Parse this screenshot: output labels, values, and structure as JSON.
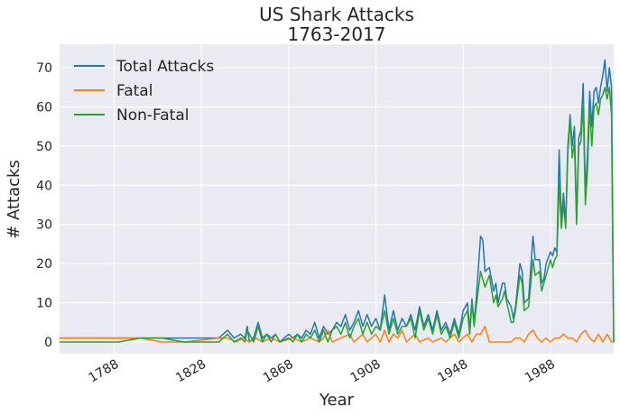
{
  "chart_data": {
    "type": "line",
    "title": "US Shark Attacks",
    "subtitle": "1763-2017",
    "xlabel": "Year",
    "ylabel": "# Attacks",
    "xlim": [
      1763,
      2017
    ],
    "ylim": [
      -3,
      76
    ],
    "x_ticks": [
      1788,
      1828,
      1868,
      1908,
      1948,
      1988
    ],
    "y_ticks": [
      0,
      10,
      20,
      30,
      40,
      50,
      60,
      70
    ],
    "grid": true,
    "legend": "top-left",
    "background": "#eaeaf2",
    "series": [
      {
        "name": "Total Attacks",
        "color": "#1f77b4",
        "points": [
          [
            1763,
            1
          ],
          [
            1790,
            1
          ],
          [
            1800,
            1
          ],
          [
            1810,
            1
          ],
          [
            1820,
            1
          ],
          [
            1830,
            1
          ],
          [
            1836,
            1
          ],
          [
            1840,
            3
          ],
          [
            1843,
            1
          ],
          [
            1846,
            2
          ],
          [
            1848,
            1
          ],
          [
            1849,
            4
          ],
          [
            1850,
            0
          ],
          [
            1852,
            1
          ],
          [
            1854,
            5
          ],
          [
            1856,
            1
          ],
          [
            1858,
            2
          ],
          [
            1860,
            1
          ],
          [
            1862,
            2
          ],
          [
            1864,
            0
          ],
          [
            1866,
            1
          ],
          [
            1868,
            2
          ],
          [
            1870,
            1
          ],
          [
            1872,
            2
          ],
          [
            1874,
            1
          ],
          [
            1876,
            3
          ],
          [
            1878,
            2
          ],
          [
            1880,
            5
          ],
          [
            1882,
            1
          ],
          [
            1884,
            4
          ],
          [
            1886,
            2
          ],
          [
            1888,
            3
          ],
          [
            1890,
            5
          ],
          [
            1892,
            4
          ],
          [
            1894,
            7
          ],
          [
            1896,
            3
          ],
          [
            1898,
            5
          ],
          [
            1900,
            8
          ],
          [
            1902,
            4
          ],
          [
            1904,
            7
          ],
          [
            1906,
            4
          ],
          [
            1908,
            6
          ],
          [
            1910,
            3
          ],
          [
            1912,
            12
          ],
          [
            1914,
            3
          ],
          [
            1916,
            8
          ],
          [
            1918,
            3
          ],
          [
            1920,
            6
          ],
          [
            1922,
            4
          ],
          [
            1924,
            7
          ],
          [
            1926,
            3
          ],
          [
            1928,
            9
          ],
          [
            1930,
            4
          ],
          [
            1932,
            7
          ],
          [
            1934,
            3
          ],
          [
            1936,
            8
          ],
          [
            1938,
            3
          ],
          [
            1940,
            5
          ],
          [
            1942,
            2
          ],
          [
            1944,
            6
          ],
          [
            1946,
            2
          ],
          [
            1948,
            8
          ],
          [
            1950,
            10
          ],
          [
            1951,
            3
          ],
          [
            1952,
            11
          ],
          [
            1953,
            5
          ],
          [
            1954,
            11
          ],
          [
            1956,
            27
          ],
          [
            1957,
            26
          ],
          [
            1958,
            18
          ],
          [
            1960,
            19
          ],
          [
            1962,
            13
          ],
          [
            1963,
            15
          ],
          [
            1964,
            10
          ],
          [
            1966,
            15
          ],
          [
            1967,
            15
          ],
          [
            1968,
            11
          ],
          [
            1970,
            9
          ],
          [
            1971,
            6
          ],
          [
            1972,
            9
          ],
          [
            1974,
            20
          ],
          [
            1975,
            18
          ],
          [
            1976,
            10
          ],
          [
            1978,
            11
          ],
          [
            1980,
            27
          ],
          [
            1981,
            21
          ],
          [
            1983,
            21
          ],
          [
            1984,
            15
          ],
          [
            1985,
            16
          ],
          [
            1986,
            20
          ],
          [
            1988,
            23
          ],
          [
            1989,
            22
          ],
          [
            1990,
            24
          ],
          [
            1991,
            23
          ],
          [
            1992,
            49
          ],
          [
            1993,
            31
          ],
          [
            1994,
            38
          ],
          [
            1995,
            30
          ],
          [
            1996,
            50
          ],
          [
            1997,
            58
          ],
          [
            1998,
            50
          ],
          [
            1999,
            55
          ],
          [
            2000,
            31
          ],
          [
            2001,
            52
          ],
          [
            2002,
            54
          ],
          [
            2003,
            66
          ],
          [
            2004,
            38
          ],
          [
            2005,
            48
          ],
          [
            2006,
            64
          ],
          [
            2007,
            55
          ],
          [
            2008,
            64
          ],
          [
            2009,
            65
          ],
          [
            2010,
            61
          ],
          [
            2011,
            65
          ],
          [
            2012,
            68
          ],
          [
            2013,
            72
          ],
          [
            2014,
            64
          ],
          [
            2015,
            70
          ],
          [
            2016,
            65
          ],
          [
            2017,
            0
          ]
        ]
      },
      {
        "name": "Fatal",
        "color": "#ff7f0e",
        "points": [
          [
            1763,
            1
          ],
          [
            1800,
            1
          ],
          [
            1810,
            0
          ],
          [
            1820,
            0
          ],
          [
            1836,
            1
          ],
          [
            1840,
            1
          ],
          [
            1844,
            0
          ],
          [
            1847,
            1
          ],
          [
            1850,
            0
          ],
          [
            1853,
            1
          ],
          [
            1856,
            0
          ],
          [
            1860,
            1
          ],
          [
            1864,
            0
          ],
          [
            1870,
            1
          ],
          [
            1874,
            0
          ],
          [
            1878,
            1
          ],
          [
            1882,
            0
          ],
          [
            1884,
            1
          ],
          [
            1886,
            3
          ],
          [
            1888,
            0
          ],
          [
            1892,
            1
          ],
          [
            1896,
            2
          ],
          [
            1898,
            0
          ],
          [
            1902,
            2
          ],
          [
            1904,
            0
          ],
          [
            1908,
            2
          ],
          [
            1910,
            0
          ],
          [
            1912,
            3
          ],
          [
            1914,
            0
          ],
          [
            1916,
            2
          ],
          [
            1918,
            1
          ],
          [
            1920,
            3
          ],
          [
            1922,
            0
          ],
          [
            1926,
            2
          ],
          [
            1928,
            0
          ],
          [
            1932,
            1
          ],
          [
            1934,
            0
          ],
          [
            1938,
            1
          ],
          [
            1940,
            0
          ],
          [
            1944,
            2
          ],
          [
            1946,
            0
          ],
          [
            1948,
            1
          ],
          [
            1950,
            2
          ],
          [
            1952,
            0
          ],
          [
            1954,
            2
          ],
          [
            1956,
            2
          ],
          [
            1958,
            4
          ],
          [
            1960,
            0
          ],
          [
            1964,
            0
          ],
          [
            1966,
            0
          ],
          [
            1968,
            0
          ],
          [
            1970,
            0
          ],
          [
            1972,
            1
          ],
          [
            1974,
            1
          ],
          [
            1976,
            0
          ],
          [
            1978,
            2
          ],
          [
            1980,
            3
          ],
          [
            1982,
            1
          ],
          [
            1984,
            0
          ],
          [
            1986,
            1
          ],
          [
            1988,
            0
          ],
          [
            1990,
            1
          ],
          [
            1992,
            1
          ],
          [
            1994,
            2
          ],
          [
            1996,
            1
          ],
          [
            1998,
            1
          ],
          [
            2000,
            0
          ],
          [
            2002,
            2
          ],
          [
            2004,
            3
          ],
          [
            2006,
            1
          ],
          [
            2008,
            0
          ],
          [
            2010,
            2
          ],
          [
            2012,
            0
          ],
          [
            2014,
            2
          ],
          [
            2016,
            0
          ],
          [
            2017,
            0
          ]
        ]
      },
      {
        "name": "Non-Fatal",
        "color": "#2ca02c",
        "points": [
          [
            1763,
            0
          ],
          [
            1790,
            0
          ],
          [
            1800,
            1
          ],
          [
            1810,
            1
          ],
          [
            1820,
            0
          ],
          [
            1830,
            0
          ],
          [
            1836,
            0
          ],
          [
            1840,
            2
          ],
          [
            1843,
            0
          ],
          [
            1846,
            1
          ],
          [
            1848,
            0
          ],
          [
            1849,
            3
          ],
          [
            1852,
            0
          ],
          [
            1854,
            4
          ],
          [
            1856,
            0
          ],
          [
            1858,
            2
          ],
          [
            1860,
            0
          ],
          [
            1862,
            2
          ],
          [
            1864,
            0
          ],
          [
            1868,
            1
          ],
          [
            1870,
            0
          ],
          [
            1872,
            2
          ],
          [
            1874,
            0
          ],
          [
            1876,
            2
          ],
          [
            1878,
            1
          ],
          [
            1880,
            3
          ],
          [
            1882,
            0
          ],
          [
            1884,
            3
          ],
          [
            1886,
            0
          ],
          [
            1888,
            3
          ],
          [
            1890,
            4
          ],
          [
            1892,
            2
          ],
          [
            1894,
            5
          ],
          [
            1896,
            1
          ],
          [
            1898,
            4
          ],
          [
            1900,
            6
          ],
          [
            1902,
            2
          ],
          [
            1904,
            5
          ],
          [
            1906,
            2
          ],
          [
            1908,
            4
          ],
          [
            1910,
            3
          ],
          [
            1912,
            8
          ],
          [
            1914,
            2
          ],
          [
            1916,
            6
          ],
          [
            1918,
            2
          ],
          [
            1920,
            4
          ],
          [
            1922,
            4
          ],
          [
            1924,
            6
          ],
          [
            1926,
            1
          ],
          [
            1928,
            8
          ],
          [
            1930,
            3
          ],
          [
            1932,
            6
          ],
          [
            1934,
            2
          ],
          [
            1936,
            7
          ],
          [
            1938,
            2
          ],
          [
            1940,
            4
          ],
          [
            1942,
            1
          ],
          [
            1944,
            5
          ],
          [
            1946,
            1
          ],
          [
            1948,
            6
          ],
          [
            1950,
            8
          ],
          [
            1951,
            2
          ],
          [
            1952,
            10
          ],
          [
            1953,
            4
          ],
          [
            1954,
            9
          ],
          [
            1956,
            18
          ],
          [
            1957,
            16
          ],
          [
            1958,
            14
          ],
          [
            1960,
            17
          ],
          [
            1962,
            10
          ],
          [
            1963,
            12
          ],
          [
            1964,
            9
          ],
          [
            1966,
            11
          ],
          [
            1967,
            13
          ],
          [
            1968,
            10
          ],
          [
            1970,
            5
          ],
          [
            1971,
            5
          ],
          [
            1972,
            8
          ],
          [
            1974,
            17
          ],
          [
            1975,
            15
          ],
          [
            1976,
            8
          ],
          [
            1978,
            9
          ],
          [
            1980,
            21
          ],
          [
            1981,
            17
          ],
          [
            1983,
            18
          ],
          [
            1984,
            13
          ],
          [
            1985,
            15
          ],
          [
            1986,
            17
          ],
          [
            1988,
            21
          ],
          [
            1989,
            19
          ],
          [
            1990,
            21
          ],
          [
            1991,
            22
          ],
          [
            1992,
            41
          ],
          [
            1993,
            29
          ],
          [
            1994,
            35
          ],
          [
            1995,
            29
          ],
          [
            1996,
            48
          ],
          [
            1997,
            57
          ],
          [
            1998,
            47
          ],
          [
            1999,
            51
          ],
          [
            2000,
            30
          ],
          [
            2001,
            50
          ],
          [
            2002,
            51
          ],
          [
            2003,
            61
          ],
          [
            2004,
            35
          ],
          [
            2005,
            44
          ],
          [
            2006,
            60
          ],
          [
            2007,
            50
          ],
          [
            2008,
            60
          ],
          [
            2009,
            61
          ],
          [
            2010,
            58
          ],
          [
            2011,
            62
          ],
          [
            2012,
            63
          ],
          [
            2013,
            65
          ],
          [
            2014,
            62
          ],
          [
            2015,
            65
          ],
          [
            2016,
            58
          ],
          [
            2017,
            0
          ]
        ]
      }
    ]
  }
}
